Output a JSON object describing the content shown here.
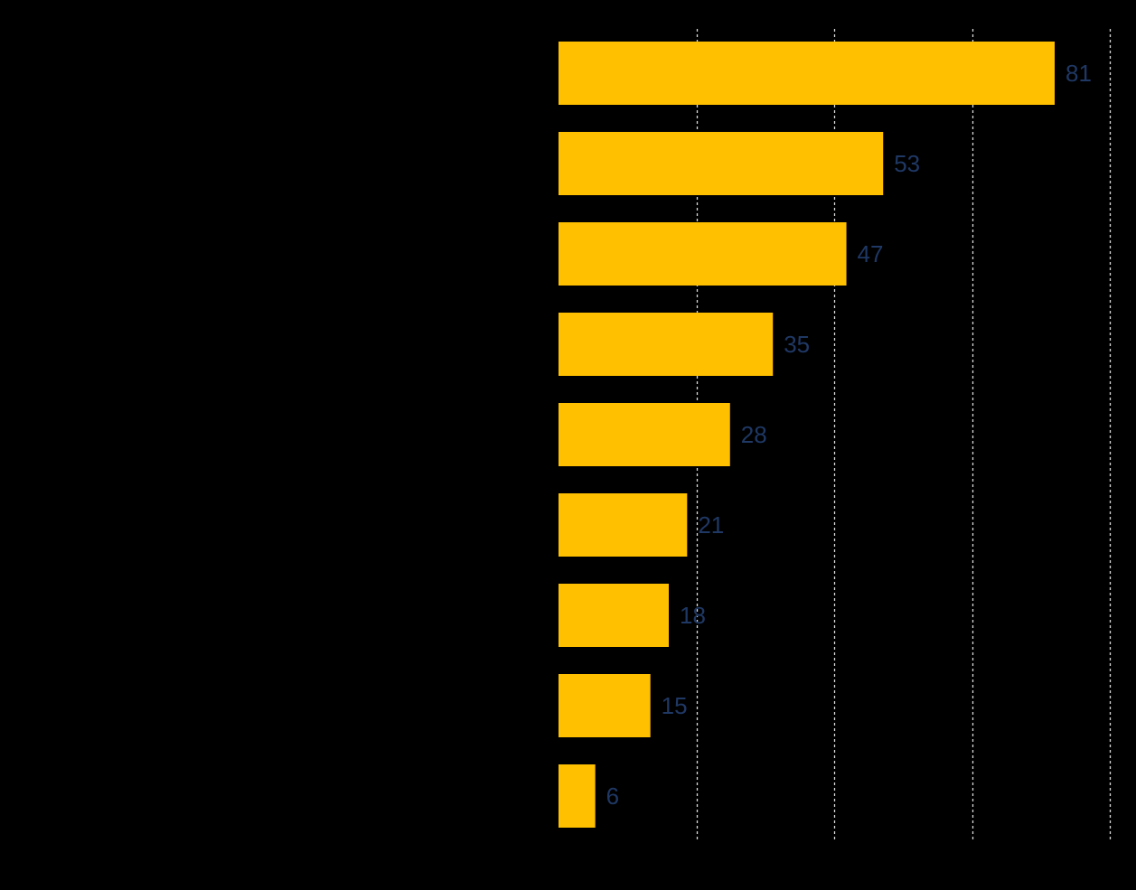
{
  "chart_data": {
    "type": "bar",
    "orientation": "horizontal",
    "categories": [
      "",
      "",
      "",
      "",
      "",
      "",
      "",
      "",
      ""
    ],
    "values": [
      81,
      53,
      47,
      35,
      28,
      21,
      18,
      15,
      6
    ],
    "value_labels": [
      "81",
      "53",
      "47",
      "35",
      "28",
      "21",
      "18",
      "15",
      "6"
    ],
    "title": "",
    "xlabel": "",
    "ylabel": "",
    "xlim": [
      0,
      90
    ],
    "grid_values": [
      22.5,
      45,
      67.5,
      90
    ],
    "grid": true,
    "grid_style": "dotted",
    "legend": "none",
    "colors": {
      "background": "#000000",
      "bar": "#FFC000",
      "value_label": "#1F3864",
      "gridline": "#D9D9D9"
    }
  }
}
